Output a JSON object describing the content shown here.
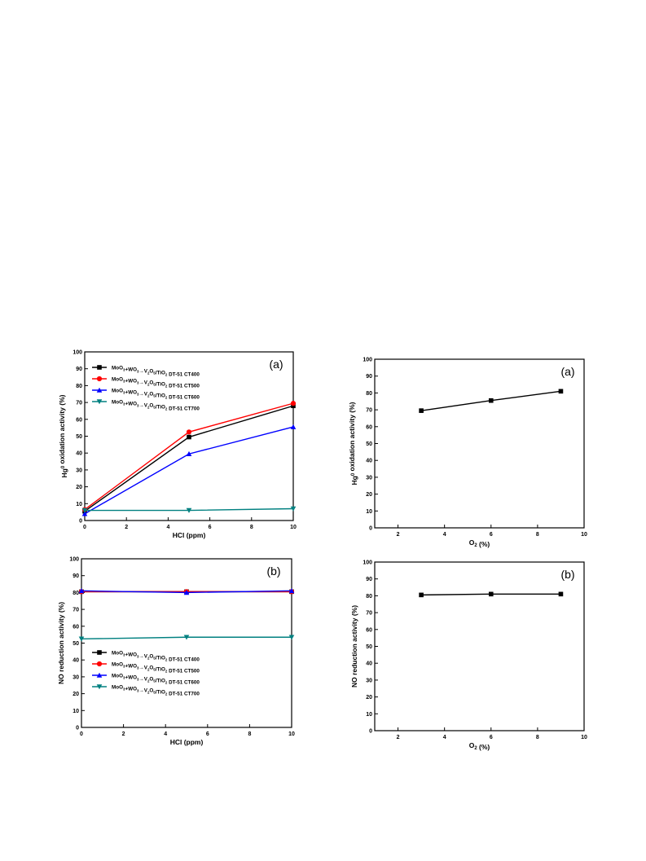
{
  "chart_data": [
    {
      "type": "line",
      "panel_label": "(a)",
      "xlabel": "HCl (ppm)",
      "ylabel": "Hg0 oxidation activity (%)",
      "xlim": [
        0,
        10
      ],
      "ylim": [
        0,
        100
      ],
      "xticks": [
        0,
        2,
        4,
        6,
        8,
        10
      ],
      "yticks": [
        0,
        10,
        20,
        30,
        40,
        50,
        60,
        70,
        80,
        90,
        100
      ],
      "legend_position": "top-left",
      "x": [
        0,
        5,
        10
      ],
      "series": [
        {
          "name": "MoO3+WO3→V2O5/TiO2 DT-51 CT400",
          "color": "#000000",
          "marker": "square",
          "values": [
            5.5,
            49.5,
            68
          ]
        },
        {
          "name": "MoO3+WO3→V2O5/TiO2 DT-51 CT500",
          "color": "#ff0000",
          "marker": "circle",
          "values": [
            6.5,
            52.5,
            69.5
          ]
        },
        {
          "name": "MoO3+WO3→V2O5/TiO2 DT-51 CT600",
          "color": "#0000ff",
          "marker": "triangle-up",
          "values": [
            4,
            39.5,
            55.5
          ]
        },
        {
          "name": "MoO3+WO3→V2O5/TiO2 DT-51 CT700",
          "color": "#008080",
          "marker": "triangle-down",
          "values": [
            6,
            6,
            7
          ]
        }
      ]
    },
    {
      "type": "line",
      "panel_label": "(b)",
      "xlabel": "HCl (ppm)",
      "ylabel": "NO reduction activity (%)",
      "xlim": [
        0,
        10
      ],
      "ylim": [
        0,
        100
      ],
      "xticks": [
        0,
        2,
        4,
        6,
        8,
        10
      ],
      "yticks": [
        0,
        10,
        20,
        30,
        40,
        50,
        60,
        70,
        80,
        90,
        100
      ],
      "legend_position": "bottom-left",
      "x": [
        0,
        5,
        10
      ],
      "series": [
        {
          "name": "MoO3+WO3→V2O5/TiO2 DT-51 CT400",
          "color": "#000000",
          "marker": "square",
          "values": [
            80.5,
            80.5,
            80.5
          ]
        },
        {
          "name": "MoO3+WO3→V2O5/TiO2 DT-51 CT500",
          "color": "#ff0000",
          "marker": "circle",
          "values": [
            80.5,
            80.5,
            80.5
          ]
        },
        {
          "name": "MoO3+WO3→V2O5/TiO2 DT-51 CT600",
          "color": "#0000ff",
          "marker": "triangle-up",
          "values": [
            81,
            80,
            81
          ]
        },
        {
          "name": "MoO3+WO3→V2O5/TiO2 DT-51 CT700",
          "color": "#008080",
          "marker": "triangle-down",
          "values": [
            52.5,
            53.5,
            53.5
          ]
        }
      ]
    },
    {
      "type": "line",
      "panel_label": "(a)",
      "xlabel": "O2 (%)",
      "ylabel": "Hg0 oxidation activity (%)",
      "xlim": [
        1,
        10
      ],
      "ylim": [
        0,
        100
      ],
      "xticks": [
        2,
        4,
        6,
        8,
        10
      ],
      "yticks": [
        0,
        10,
        20,
        30,
        40,
        50,
        60,
        70,
        80,
        90,
        100
      ],
      "x": [
        3,
        6,
        9
      ],
      "series": [
        {
          "color": "#000000",
          "marker": "square",
          "values": [
            69.5,
            75.5,
            81
          ]
        }
      ]
    },
    {
      "type": "line",
      "panel_label": "(b)",
      "xlabel": "O2 (%)",
      "ylabel": "NO reduction activity (%)",
      "xlim": [
        1,
        10
      ],
      "ylim": [
        0,
        100
      ],
      "xticks": [
        2,
        4,
        6,
        8,
        10
      ],
      "yticks": [
        0,
        10,
        20,
        30,
        40,
        50,
        60,
        70,
        80,
        90,
        100
      ],
      "x": [
        3,
        6,
        9
      ],
      "series": [
        {
          "color": "#000000",
          "marker": "square",
          "values": [
            80.5,
            81,
            81
          ]
        }
      ]
    }
  ]
}
